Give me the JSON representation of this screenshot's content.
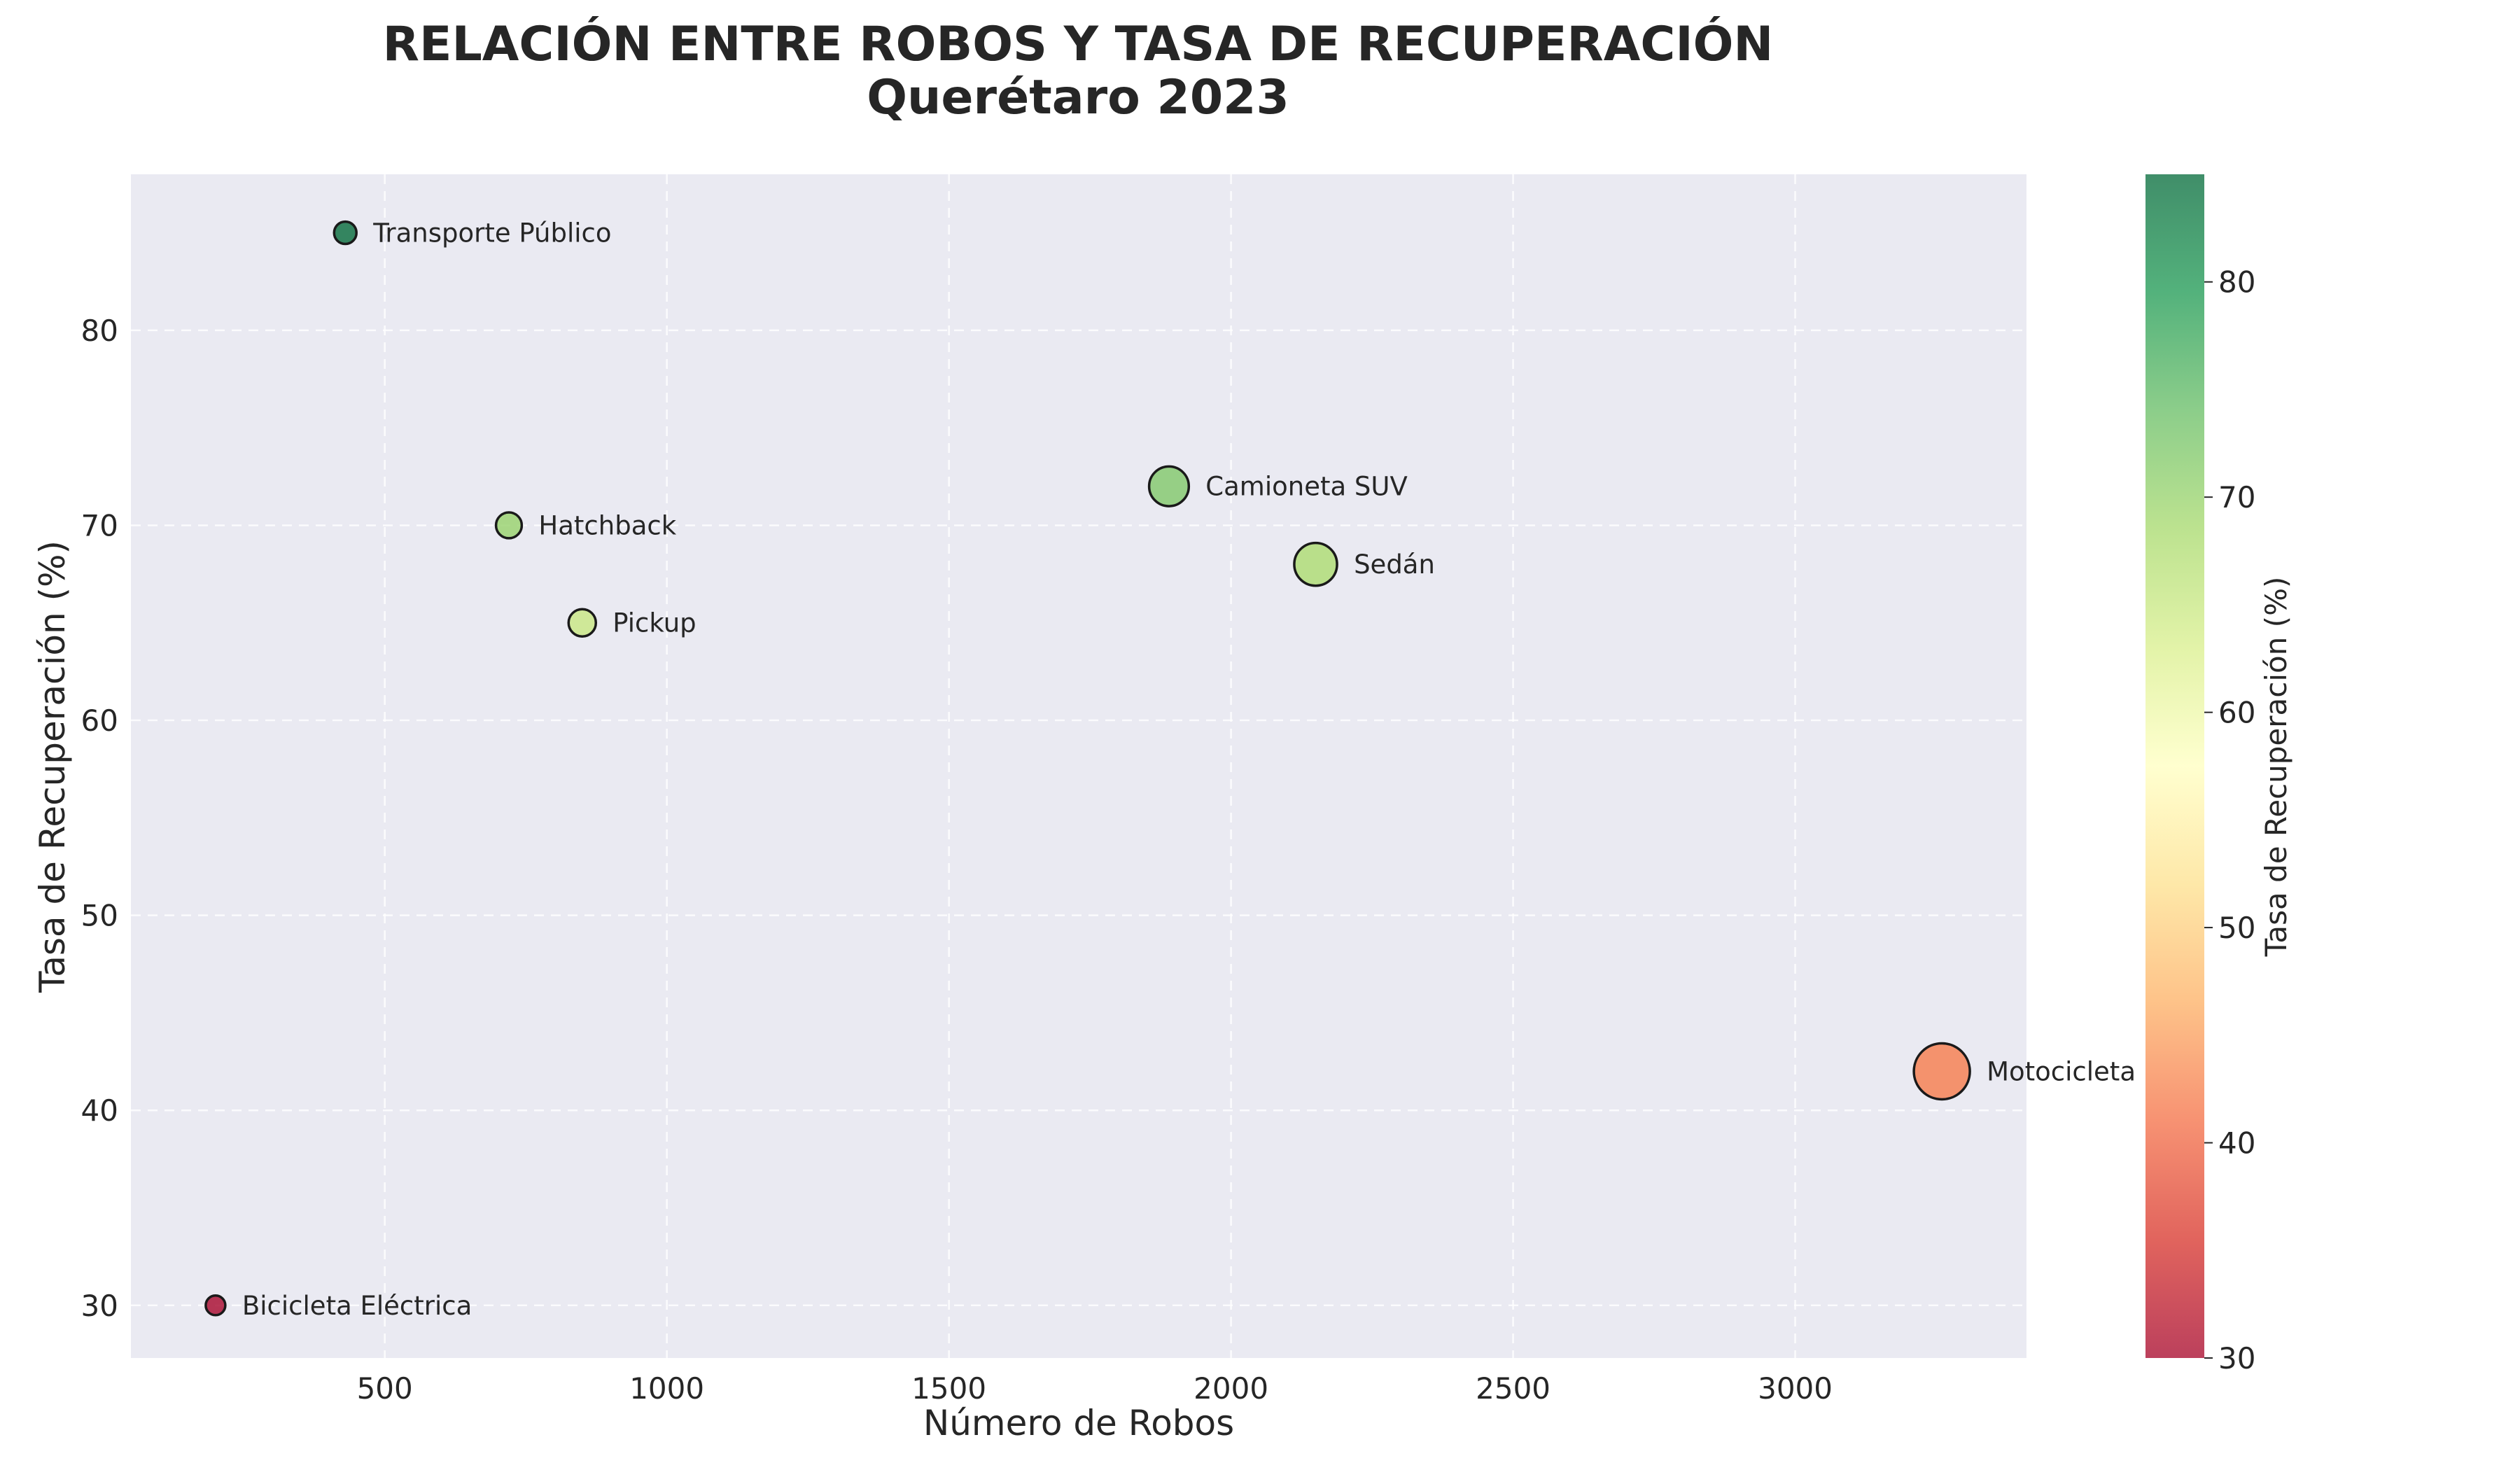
{
  "chart_data": {
    "type": "scatter",
    "title": "RELACIÓN ENTRE ROBOS Y TASA DE RECUPERACIÓN",
    "subtitle": "Querétaro 2023",
    "xlabel": "Número de Robos",
    "ylabel": "Tasa de Recuperación (%)",
    "xlim": [
      50,
      3410
    ],
    "ylim": [
      27.3,
      88
    ],
    "xticks": [
      500,
      1000,
      1500,
      2000,
      2500,
      3000
    ],
    "yticks": [
      30,
      40,
      50,
      60,
      70,
      80
    ],
    "grid": true,
    "points": [
      {
        "label": "Transporte Público",
        "x": 430,
        "y": 85
      },
      {
        "label": "Hatchback",
        "x": 720,
        "y": 70
      },
      {
        "label": "Pickup",
        "x": 850,
        "y": 65
      },
      {
        "label": "Camioneta SUV",
        "x": 1890,
        "y": 72
      },
      {
        "label": "Sedán",
        "x": 2150,
        "y": 68
      },
      {
        "label": "Motocicleta",
        "x": 3260,
        "y": 42
      },
      {
        "label": "Bicicleta Eléctrica",
        "x": 200,
        "y": 30
      }
    ],
    "size_encodes": "x",
    "color_encodes": "y",
    "colorbar": {
      "label": "Tasa de Recuperación (%)",
      "range": [
        30,
        85
      ],
      "ticks": [
        30,
        40,
        50,
        60,
        70,
        80
      ],
      "colormap": "RdYlGn",
      "stops": [
        "#a50026",
        "#d73027",
        "#f46d43",
        "#fdae61",
        "#fee08b",
        "#ffffbf",
        "#d9ef8b",
        "#a6d96a",
        "#66bd63",
        "#1a9850",
        "#006837"
      ]
    }
  },
  "colors": {
    "plot_background": "#eaeaf2",
    "marker_edge": "#1a1a1a",
    "text": "#262626"
  }
}
